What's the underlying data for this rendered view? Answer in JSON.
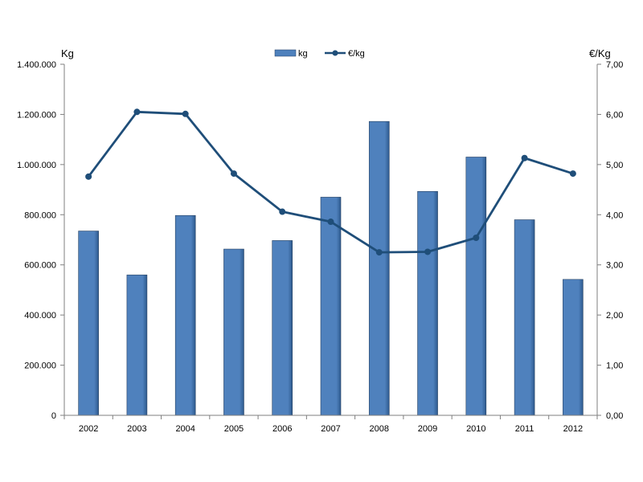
{
  "chart_data": {
    "type": "bar",
    "categories": [
      "2002",
      "2003",
      "2004",
      "2005",
      "2006",
      "2007",
      "2008",
      "2009",
      "2010",
      "2011",
      "2012"
    ],
    "series": [
      {
        "name": "kg",
        "kind": "bar",
        "axis": "left",
        "values": [
          735000,
          560000,
          797000,
          663000,
          697000,
          870000,
          1172000,
          893000,
          1030000,
          780000,
          542000
        ]
      },
      {
        "name": "€/kg",
        "kind": "line",
        "axis": "right",
        "values": [
          4.76,
          6.05,
          6.01,
          4.82,
          4.06,
          3.86,
          3.25,
          3.26,
          3.54,
          5.13,
          4.82
        ]
      }
    ],
    "left_axis": {
      "label": "Kg",
      "ylim": [
        0,
        1400000
      ],
      "ticks": [
        "0",
        "200.000",
        "400.000",
        "600.000",
        "800.000",
        "1.000.000",
        "1.200.000",
        "1.400.000"
      ]
    },
    "right_axis": {
      "label": "€/Kg",
      "ylim": [
        0,
        7
      ],
      "ticks": [
        "0,00",
        "1,00",
        "2,00",
        "3,00",
        "4,00",
        "5,00",
        "6,00",
        "7,00"
      ]
    },
    "legend_position": "top-center",
    "grid": false,
    "colors": {
      "bar": "#4F81BD",
      "bar_edge": "#243F60",
      "line": "#1F4E79"
    }
  }
}
